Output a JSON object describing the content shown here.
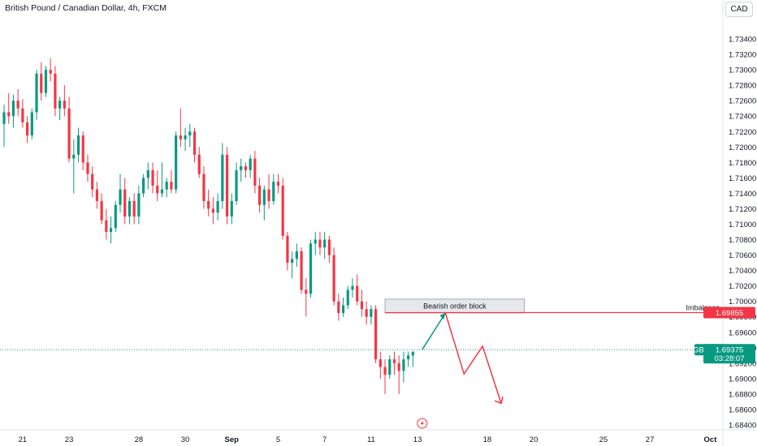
{
  "header": {
    "title": "British Pound / Canadian Dollar, 4h, FXCM",
    "currency": "CAD"
  },
  "chart_data": {
    "type": "candlestick",
    "title": "British Pound / Canadian Dollar, 4h, FXCM",
    "ylim": [
      1.684,
      1.736
    ],
    "y_ticks": [
      "1.73400",
      "1.73200",
      "1.73000",
      "1.72800",
      "1.72600",
      "1.72400",
      "1.72200",
      "1.72000",
      "1.71800",
      "1.71600",
      "1.71400",
      "1.71200",
      "1.71000",
      "1.70800",
      "1.70600",
      "1.70400",
      "1.70200",
      "1.70000",
      "1.69800",
      "1.69600",
      "1.69400",
      "1.69200",
      "1.69000",
      "1.68800",
      "1.68600",
      "1.68400"
    ],
    "x_ticks": [
      {
        "label": "21",
        "bar": 4,
        "bold": false
      },
      {
        "label": "23",
        "bar": 14,
        "bold": false
      },
      {
        "label": "28",
        "bar": 29,
        "bold": false
      },
      {
        "label": "30",
        "bar": 39,
        "bold": false
      },
      {
        "label": "Sep",
        "bar": 49,
        "bold": true
      },
      {
        "label": "5",
        "bar": 59,
        "bold": false
      },
      {
        "label": "7",
        "bar": 69,
        "bold": false
      },
      {
        "label": "11",
        "bar": 79,
        "bold": false
      },
      {
        "label": "13",
        "bar": 89,
        "bold": false
      },
      {
        "label": "18",
        "bar": 104,
        "bold": false
      },
      {
        "label": "20",
        "bar": 114,
        "bold": false
      },
      {
        "label": "25",
        "bar": 129,
        "bold": false
      },
      {
        "label": "27",
        "bar": 139,
        "bold": false
      },
      {
        "label": "Oct",
        "bar": 152,
        "bold": true
      }
    ],
    "candles": [
      [
        1.723,
        1.7255,
        1.72,
        1.7245
      ],
      [
        1.7245,
        1.727,
        1.723,
        1.724
      ],
      [
        1.724,
        1.7268,
        1.7225,
        1.726
      ],
      [
        1.726,
        1.7275,
        1.724,
        1.725
      ],
      [
        1.725,
        1.7262,
        1.7225,
        1.7232
      ],
      [
        1.7232,
        1.724,
        1.7205,
        1.7215
      ],
      [
        1.7215,
        1.725,
        1.721,
        1.7245
      ],
      [
        1.7245,
        1.73,
        1.7235,
        1.7295
      ],
      [
        1.7295,
        1.731,
        1.726,
        1.727
      ],
      [
        1.727,
        1.7305,
        1.7265,
        1.73
      ],
      [
        1.73,
        1.7315,
        1.7285,
        1.7295
      ],
      [
        1.7295,
        1.7305,
        1.724,
        1.725
      ],
      [
        1.725,
        1.7265,
        1.7235,
        1.726
      ],
      [
        1.726,
        1.728,
        1.724,
        1.725
      ],
      [
        1.725,
        1.7265,
        1.718,
        1.7185
      ],
      [
        1.7185,
        1.721,
        1.714,
        1.719
      ],
      [
        1.719,
        1.7225,
        1.718,
        1.7215
      ],
      [
        1.7215,
        1.722,
        1.717,
        1.718
      ],
      [
        1.718,
        1.719,
        1.7155,
        1.7165
      ],
      [
        1.7165,
        1.7175,
        1.7135,
        1.7145
      ],
      [
        1.7145,
        1.7155,
        1.712,
        1.713
      ],
      [
        1.713,
        1.714,
        1.71,
        1.7105
      ],
      [
        1.7105,
        1.712,
        1.708,
        1.709
      ],
      [
        1.709,
        1.711,
        1.7075,
        1.7095
      ],
      [
        1.7095,
        1.713,
        1.709,
        1.7125
      ],
      [
        1.7125,
        1.7165,
        1.7115,
        1.7145
      ],
      [
        1.7145,
        1.716,
        1.71,
        1.711
      ],
      [
        1.711,
        1.7135,
        1.71,
        1.713
      ],
      [
        1.713,
        1.714,
        1.71,
        1.711
      ],
      [
        1.711,
        1.715,
        1.71,
        1.714
      ],
      [
        1.714,
        1.7165,
        1.7135,
        1.716
      ],
      [
        1.716,
        1.718,
        1.7145,
        1.717
      ],
      [
        1.717,
        1.718,
        1.714,
        1.715
      ],
      [
        1.715,
        1.717,
        1.713,
        1.714
      ],
      [
        1.714,
        1.718,
        1.7135,
        1.7145
      ],
      [
        1.7145,
        1.716,
        1.7135,
        1.7155
      ],
      [
        1.7155,
        1.717,
        1.714,
        1.7145
      ],
      [
        1.7145,
        1.722,
        1.714,
        1.7215
      ],
      [
        1.7215,
        1.725,
        1.72,
        1.721
      ],
      [
        1.721,
        1.7225,
        1.7195,
        1.7215
      ],
      [
        1.7215,
        1.723,
        1.72,
        1.722
      ],
      [
        1.722,
        1.7225,
        1.718,
        1.719
      ],
      [
        1.719,
        1.72,
        1.716,
        1.7165
      ],
      [
        1.7165,
        1.7175,
        1.712,
        1.713
      ],
      [
        1.713,
        1.7145,
        1.711,
        1.712
      ],
      [
        1.712,
        1.7135,
        1.71,
        1.7115
      ],
      [
        1.7115,
        1.714,
        1.7105,
        1.713
      ],
      [
        1.713,
        1.7205,
        1.712,
        1.719
      ],
      [
        1.719,
        1.72,
        1.71,
        1.711
      ],
      [
        1.711,
        1.714,
        1.71,
        1.713
      ],
      [
        1.713,
        1.718,
        1.7125,
        1.717
      ],
      [
        1.717,
        1.7185,
        1.7155,
        1.7175
      ],
      [
        1.7175,
        1.718,
        1.716,
        1.717
      ],
      [
        1.717,
        1.719,
        1.716,
        1.7185
      ],
      [
        1.7185,
        1.7195,
        1.714,
        1.715
      ],
      [
        1.715,
        1.716,
        1.7115,
        1.7125
      ],
      [
        1.7125,
        1.715,
        1.7105,
        1.7145
      ],
      [
        1.7145,
        1.7165,
        1.712,
        1.713
      ],
      [
        1.713,
        1.7165,
        1.7125,
        1.7155
      ],
      [
        1.7155,
        1.7165,
        1.714,
        1.715
      ],
      [
        1.715,
        1.716,
        1.708,
        1.7085
      ],
      [
        1.7085,
        1.709,
        1.704,
        1.705
      ],
      [
        1.705,
        1.7065,
        1.703,
        1.7055
      ],
      [
        1.7055,
        1.7075,
        1.7045,
        1.7065
      ],
      [
        1.7065,
        1.707,
        1.701,
        1.7015
      ],
      [
        1.7015,
        1.703,
        1.698,
        1.701
      ],
      [
        1.701,
        1.708,
        1.7005,
        1.7075
      ],
      [
        1.7075,
        1.709,
        1.706,
        1.708
      ],
      [
        1.708,
        1.709,
        1.706,
        1.707
      ],
      [
        1.707,
        1.709,
        1.7055,
        1.708
      ],
      [
        1.708,
        1.7085,
        1.705,
        1.706
      ],
      [
        1.706,
        1.707,
        1.6995,
        1.7
      ],
      [
        1.7,
        1.701,
        1.6975,
        1.6985
      ],
      [
        1.6985,
        1.7005,
        1.698,
        1.6995
      ],
      [
        1.6995,
        1.702,
        1.699,
        1.7015
      ],
      [
        1.7015,
        1.703,
        1.7005,
        1.702
      ],
      [
        1.702,
        1.7035,
        1.6995,
        1.7
      ],
      [
        1.7,
        1.7015,
        1.698,
        1.699
      ],
      [
        1.699,
        1.7,
        1.697,
        1.698
      ],
      [
        1.698,
        1.6995,
        1.697,
        1.699
      ],
      [
        1.699,
        1.6995,
        1.692,
        1.6925
      ],
      [
        1.6925,
        1.6935,
        1.69,
        1.6915
      ],
      [
        1.6915,
        1.6925,
        1.688,
        1.6905
      ],
      [
        1.6905,
        1.693,
        1.69,
        1.6925
      ],
      [
        1.6925,
        1.6935,
        1.6905,
        1.692
      ],
      [
        1.692,
        1.693,
        1.688,
        1.691
      ],
      [
        1.691,
        1.6935,
        1.6895,
        1.6925
      ],
      [
        1.6925,
        1.6935,
        1.6915,
        1.693
      ],
      [
        1.693,
        1.6935,
        1.6915,
        1.6935
      ]
    ],
    "order_block": {
      "label": "Bearish order block",
      "from_bar": 82,
      "to_bar": 112,
      "top": 1.7003,
      "bottom": 1.6985
    },
    "imbalance": {
      "label": "Imbalance",
      "value": 1.69855,
      "tag": "1.69855",
      "from_bar": 82
    },
    "current_price": {
      "symbol": "GBPCAD",
      "value": 1.69375,
      "tag": "1.69375",
      "countdown": "03:28:07"
    },
    "projection_up": [
      {
        "bar": 90,
        "value": 1.69375
      },
      {
        "bar": 95,
        "value": 1.6985
      }
    ],
    "projection_down": [
      {
        "bar": 95,
        "value": 1.6985
      },
      {
        "bar": 99,
        "value": 1.6906
      },
      {
        "bar": 103,
        "value": 1.6942
      },
      {
        "bar": 107,
        "value": 1.6868
      }
    ],
    "colors": {
      "up": "#089981",
      "down": "#f23645",
      "projection_up": "#089981",
      "projection_down": "#f23645"
    }
  },
  "footer": {
    "marker_icon": "lightning-icon"
  }
}
